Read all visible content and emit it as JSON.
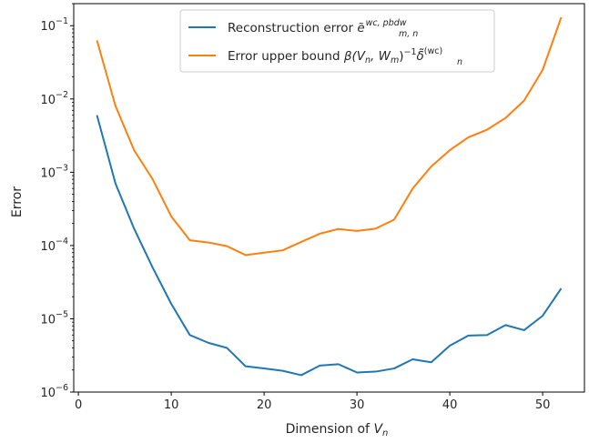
{
  "chart_data": {
    "type": "line",
    "xlabel": {
      "pre": "Dimension of ",
      "main": "V",
      "sub": "n"
    },
    "ylabel": "Error",
    "yscale": "log",
    "xlim": [
      -0.5,
      54.5
    ],
    "ylim": [
      1e-06,
      0.2
    ],
    "xticks": [
      0,
      10,
      20,
      30,
      40,
      50
    ],
    "yticks": [
      {
        "value": 1e-06,
        "mantissa": "10",
        "exp": "−6"
      },
      {
        "value": 1e-05,
        "mantissa": "10",
        "exp": "−5"
      },
      {
        "value": 0.0001,
        "mantissa": "10",
        "exp": "−4"
      },
      {
        "value": 0.001,
        "mantissa": "10",
        "exp": "−3"
      },
      {
        "value": 0.01,
        "mantissa": "10",
        "exp": "−2"
      },
      {
        "value": 0.1,
        "mantissa": "10",
        "exp": "−1"
      }
    ],
    "grid": false,
    "legend_position": "top-center",
    "x": [
      2,
      4,
      6,
      8,
      10,
      12,
      14,
      16,
      18,
      20,
      22,
      24,
      26,
      28,
      30,
      32,
      34,
      36,
      38,
      40,
      42,
      44,
      46,
      48,
      50,
      52
    ],
    "series": [
      {
        "color": "#1f77b4",
        "legend": {
          "text": "Reconstruction error ",
          "sym": "ẽ",
          "sup": "wc, pbdw",
          "sub": "m, n"
        },
        "values": [
          0.006,
          0.0007,
          0.00017,
          5e-05,
          1.6e-05,
          6e-06,
          4.7e-06,
          4e-06,
          2.25e-06,
          2.1e-06,
          1.95e-06,
          1.7e-06,
          2.3e-06,
          2.4e-06,
          1.85e-06,
          1.9e-06,
          2.1e-06,
          2.8e-06,
          2.55e-06,
          4.3e-06,
          5.9e-06,
          6e-06,
          8.2e-06,
          7e-06,
          1.1e-05,
          2.6e-05
        ]
      },
      {
        "color": "#ff7f0e",
        "legend": {
          "text": "Error upper bound ",
          "formula": "β(V",
          "formula_sub1": "n",
          "formula_mid": ", W",
          "formula_sub2": "m",
          "formula_end": ")",
          "formula_sup": "−1",
          "sym": "δ̃",
          "sup": "(wc)",
          "sub": "n"
        },
        "values": [
          0.063,
          0.008,
          0.002,
          0.0008,
          0.00025,
          0.000118,
          0.00011,
          9.8e-05,
          7.4e-05,
          8e-05,
          8.6e-05,
          0.000112,
          0.000145,
          0.000168,
          0.000158,
          0.00017,
          0.000225,
          0.0006,
          0.0012,
          0.002,
          0.003,
          0.0038,
          0.0055,
          0.0095,
          0.025,
          0.13
        ]
      }
    ]
  }
}
